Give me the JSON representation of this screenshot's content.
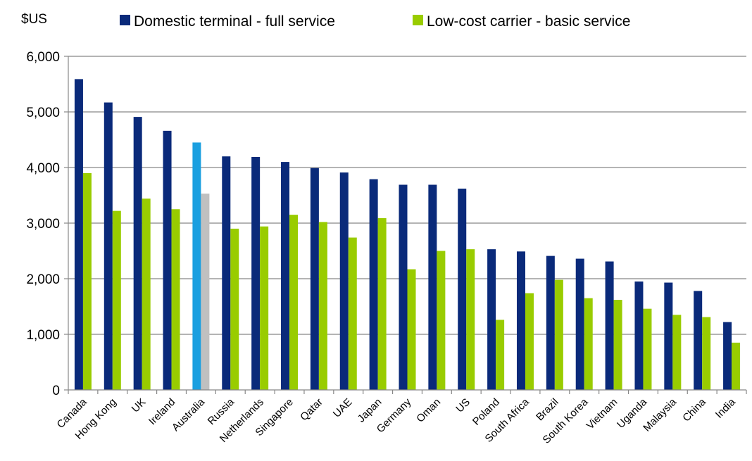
{
  "chart_data": {
    "type": "bar",
    "unit_label": "$US",
    "categories": [
      "Canada",
      "Hong Kong",
      "UK",
      "Ireland",
      "Australia",
      "Russia",
      "Netherlands",
      "Singapore",
      "Qatar",
      "UAE",
      "Japan",
      "Germany",
      "Oman",
      "US",
      "Poland",
      "South Africa",
      "Brazil",
      "South Korea",
      "Vietnam",
      "Uganda",
      "Malaysia",
      "China",
      "India"
    ],
    "series": [
      {
        "name": "Domestic terminal - full service",
        "color": "#0a2a7a",
        "values": [
          5590,
          5170,
          4910,
          4660,
          4450,
          4200,
          4190,
          4100,
          3990,
          3910,
          3790,
          3690,
          3690,
          3620,
          2530,
          2490,
          2410,
          2360,
          2310,
          1950,
          1930,
          1780,
          1220
        ]
      },
      {
        "name": "Low-cost carrier - basic service",
        "color": "#99cc00",
        "values": [
          3900,
          3220,
          3440,
          3250,
          3530,
          2900,
          2940,
          3150,
          3020,
          2740,
          3090,
          2170,
          2500,
          2530,
          1260,
          1740,
          1980,
          1650,
          1620,
          1460,
          1350,
          1310,
          850
        ]
      }
    ],
    "highlight": {
      "category": "Australia",
      "colors": [
        "#1a9fe0",
        "#c0c0c0"
      ]
    },
    "ylim": [
      0,
      6000
    ],
    "yticks": [
      0,
      1000,
      2000,
      3000,
      4000,
      5000,
      6000
    ],
    "ytick_labels": [
      "0",
      "1,000",
      "2,000",
      "3,000",
      "4,000",
      "5,000",
      "6,000"
    ],
    "grid": true,
    "legend_position": "top"
  }
}
